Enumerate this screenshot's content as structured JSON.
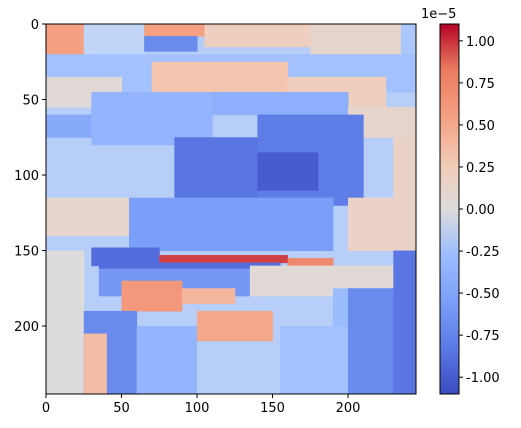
{
  "chart_data": {
    "type": "heatmap",
    "title": "",
    "xlabel": "",
    "ylabel": "",
    "xlim": [
      0,
      245
    ],
    "ylim": [
      245,
      0
    ],
    "xticks": [
      0,
      50,
      100,
      150,
      200
    ],
    "yticks": [
      0,
      50,
      100,
      150,
      200
    ],
    "colormap": "coolwarm",
    "colorbar": {
      "range": [
        -1.1,
        1.1
      ],
      "ticks": [
        "-1.00",
        "-0.75",
        "-0.50",
        "-0.25",
        "0.00",
        "0.25",
        "0.50",
        "0.75",
        "1.00"
      ],
      "tick_values": [
        -1.0,
        -0.75,
        -0.5,
        -0.25,
        0.0,
        0.25,
        0.5,
        0.75,
        1.0
      ],
      "scale_label": "1e−5"
    },
    "colors": {
      "deep_blue": "#3b4cc0",
      "blue": "#5a78e4",
      "mid_blue": "#7b9ff9",
      "light_blue": "#9ebeff",
      "pale_blue": "#c0d4f5",
      "neutral": "#dddcdc",
      "pale_orange": "#f2cbb7",
      "orange": "#f5a081",
      "salmon": "#e97a5f",
      "deep_red": "#b40426"
    },
    "regions": [
      {
        "x": [
          0,
          245
        ],
        "y": [
          0,
          245
        ],
        "value": -0.15
      },
      {
        "x": [
          0,
          25
        ],
        "y": [
          0,
          20
        ],
        "value": 0.55
      },
      {
        "x": [
          25,
          65
        ],
        "y": [
          0,
          20
        ],
        "value": -0.1
      },
      {
        "x": [
          65,
          105
        ],
        "y": [
          0,
          8
        ],
        "value": 0.55
      },
      {
        "x": [
          65,
          100
        ],
        "y": [
          8,
          18
        ],
        "value": -0.7
      },
      {
        "x": [
          105,
          175
        ],
        "y": [
          0,
          15
        ],
        "value": 0.2
      },
      {
        "x": [
          175,
          235
        ],
        "y": [
          0,
          20
        ],
        "value": 0.1
      },
      {
        "x": [
          235,
          245
        ],
        "y": [
          0,
          45
        ],
        "value": -0.2
      },
      {
        "x": [
          0,
          245
        ],
        "y": [
          20,
          45
        ],
        "value": -0.25
      },
      {
        "x": [
          0,
          50
        ],
        "y": [
          35,
          55
        ],
        "value": 0.05
      },
      {
        "x": [
          70,
          160
        ],
        "y": [
          25,
          45
        ],
        "value": 0.3
      },
      {
        "x": [
          160,
          225
        ],
        "y": [
          35,
          65
        ],
        "value": 0.2
      },
      {
        "x": [
          0,
          30
        ],
        "y": [
          60,
          75
        ],
        "value": -0.45
      },
      {
        "x": [
          30,
          110
        ],
        "y": [
          45,
          80
        ],
        "value": -0.35
      },
      {
        "x": [
          110,
          200
        ],
        "y": [
          45,
          60
        ],
        "value": -0.4
      },
      {
        "x": [
          200,
          245
        ],
        "y": [
          55,
          75
        ],
        "value": 0.1
      },
      {
        "x": [
          230,
          245
        ],
        "y": [
          75,
          120
        ],
        "value": 0.15
      },
      {
        "x": [
          140,
          210
        ],
        "y": [
          60,
          120
        ],
        "value": -0.8
      },
      {
        "x": [
          85,
          140
        ],
        "y": [
          75,
          125
        ],
        "value": -0.85
      },
      {
        "x": [
          140,
          180
        ],
        "y": [
          85,
          110
        ],
        "value": -1.0
      },
      {
        "x": [
          0,
          85
        ],
        "y": [
          115,
          140
        ],
        "value": 0.1
      },
      {
        "x": [
          200,
          245
        ],
        "y": [
          115,
          150
        ],
        "value": 0.15
      },
      {
        "x": [
          55,
          190
        ],
        "y": [
          115,
          150
        ],
        "value": -0.55
      },
      {
        "x": [
          30,
          75
        ],
        "y": [
          148,
          160
        ],
        "value": -0.9
      },
      {
        "x": [
          75,
          160
        ],
        "y": [
          153,
          158
        ],
        "value": 0.95
      },
      {
        "x": [
          160,
          190
        ],
        "y": [
          155,
          160
        ],
        "value": 0.7
      },
      {
        "x": [
          35,
          155
        ],
        "y": [
          158,
          162
        ],
        "value": -0.9
      },
      {
        "x": [
          35,
          135
        ],
        "y": [
          162,
          180
        ],
        "value": -0.6
      },
      {
        "x": [
          135,
          245
        ],
        "y": [
          160,
          180
        ],
        "value": 0.05
      },
      {
        "x": [
          50,
          90
        ],
        "y": [
          170,
          190
        ],
        "value": 0.6
      },
      {
        "x": [
          90,
          125
        ],
        "y": [
          175,
          185
        ],
        "value": 0.4
      },
      {
        "x": [
          190,
          230
        ],
        "y": [
          175,
          200
        ],
        "value": -0.3
      },
      {
        "x": [
          0,
          25
        ],
        "y": [
          150,
          245
        ],
        "value": 0.0
      },
      {
        "x": [
          25,
          60
        ],
        "y": [
          190,
          245
        ],
        "value": -0.7
      },
      {
        "x": [
          25,
          40
        ],
        "y": [
          205,
          245
        ],
        "value": 0.35
      },
      {
        "x": [
          60,
          100
        ],
        "y": [
          200,
          245
        ],
        "value": -0.35
      },
      {
        "x": [
          100,
          150
        ],
        "y": [
          190,
          210
        ],
        "value": 0.5
      },
      {
        "x": [
          100,
          155
        ],
        "y": [
          210,
          245
        ],
        "value": -0.15
      },
      {
        "x": [
          155,
          230
        ],
        "y": [
          200,
          245
        ],
        "value": -0.25
      },
      {
        "x": [
          200,
          245
        ],
        "y": [
          175,
          245
        ],
        "value": -0.7
      },
      {
        "x": [
          230,
          245
        ],
        "y": [
          150,
          245
        ],
        "value": -0.85
      }
    ]
  }
}
